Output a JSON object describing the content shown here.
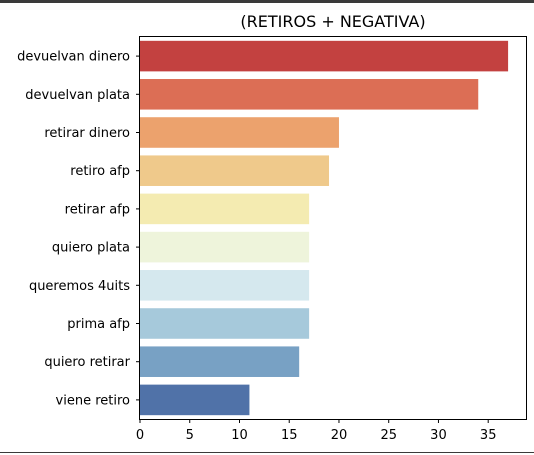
{
  "chart_data": {
    "type": "bar",
    "orientation": "horizontal",
    "title": "(RETIROS + NEGATIVA)",
    "xlabel": "",
    "ylabel": "",
    "categories": [
      "devuelvan dinero",
      "devuelvan plata",
      "retirar dinero",
      "retiro afp",
      "retirar afp",
      "quiero plata",
      "queremos 4uits",
      "prima afp",
      "quiero retirar",
      "viene retiro"
    ],
    "values": [
      37,
      34,
      20,
      19,
      17,
      17,
      17,
      17,
      16,
      11
    ],
    "colors": [
      "#c34140",
      "#dc6e55",
      "#eca26d",
      "#efc98b",
      "#f4ebb1",
      "#eef4db",
      "#d5e8ee",
      "#a6c9db",
      "#78a1c4",
      "#5072a8"
    ],
    "xlim": [
      0,
      38.8
    ],
    "xticks": [
      0,
      5,
      10,
      15,
      20,
      25,
      30,
      35
    ],
    "grid": false,
    "legend": "none"
  }
}
